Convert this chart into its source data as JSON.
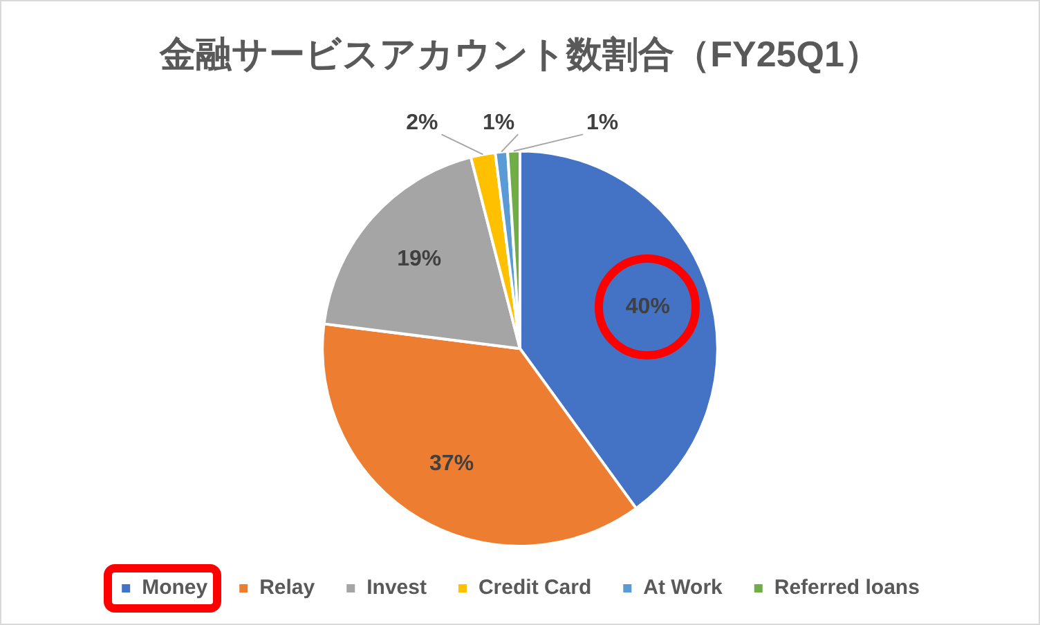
{
  "chart_data": {
    "type": "pie",
    "title": "金融サービスアカウント数割合（FY25Q1）",
    "categories": [
      "Money",
      "Relay",
      "Invest",
      "Credit Card",
      "At Work",
      "Referred loans"
    ],
    "values": [
      40,
      37,
      19,
      2,
      1,
      1
    ],
    "colors": [
      "#4472c4",
      "#ed7d31",
      "#a5a5a5",
      "#ffc000",
      "#5b9bd5",
      "#70ad47"
    ],
    "value_labels": [
      "40%",
      "37%",
      "19%",
      "2%",
      "1%",
      "1%"
    ],
    "legend": "bottom"
  }
}
